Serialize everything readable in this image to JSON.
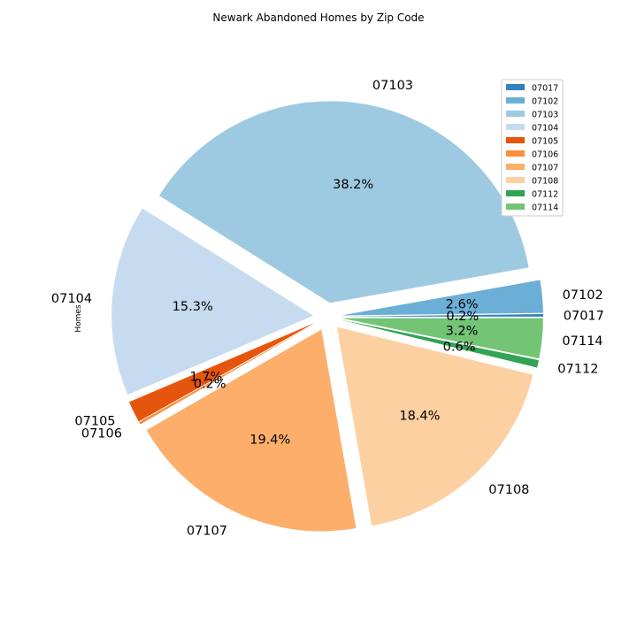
{
  "chart_data": {
    "type": "pie",
    "title": "Newark Abandoned Homes by Zip Code",
    "ylabel": "Homes",
    "categories": [
      "07017",
      "07102",
      "07103",
      "07104",
      "07105",
      "07106",
      "07107",
      "07108",
      "07112",
      "07114"
    ],
    "values": [
      0.2,
      2.6,
      38.2,
      15.3,
      1.7,
      0.2,
      19.4,
      18.4,
      0.6,
      3.2
    ],
    "percent_labels": [
      "0.2%",
      "2.6%",
      "38.2%",
      "15.3%",
      "1.7%",
      "0.2%",
      "19.4%",
      "18.4%",
      "0.6%",
      "3.2%"
    ],
    "colors": [
      "#3182bd",
      "#6baed6",
      "#9ecae1",
      "#c6dbef",
      "#e6550d",
      "#fd8d3c",
      "#fdae6b",
      "#fdd0a2",
      "#31a354",
      "#74c476"
    ],
    "exploded": true,
    "start_angle_deg": 0,
    "direction": "counterclockwise",
    "legend": {
      "position": "top-right",
      "entries": [
        "07017",
        "07102",
        "07103",
        "07104",
        "07105",
        "07106",
        "07107",
        "07108",
        "07112",
        "07114"
      ]
    }
  }
}
